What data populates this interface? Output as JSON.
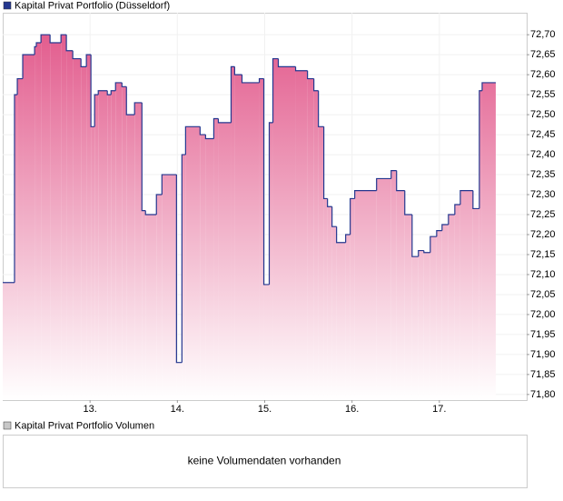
{
  "chart_data": [
    {
      "type": "line",
      "series": [
        {
          "name": "Kapital Privat Portfolio (Düsseldorf)",
          "color": "#24378f",
          "fill": "#e25a8c",
          "values": [
            72.08,
            72.55,
            72.59,
            72.65,
            72.67,
            72.68,
            72.7,
            72.68,
            72.7,
            72.66,
            72.64,
            72.62,
            72.65,
            72.47,
            72.55,
            72.56,
            72.55,
            72.56,
            72.58,
            72.57,
            72.5,
            72.53,
            72.26,
            72.25,
            72.3,
            72.35,
            71.88,
            72.4,
            72.47,
            72.45,
            72.44,
            72.49,
            72.48,
            72.62,
            72.6,
            72.58,
            72.59,
            72.075,
            72.48,
            72.64,
            72.62,
            72.61,
            72.59,
            72.56,
            72.47,
            72.29,
            72.27,
            72.22,
            72.18,
            72.2,
            72.29,
            72.31,
            72.34,
            72.36,
            72.31,
            72.25,
            72.145,
            72.16,
            72.155,
            72.195,
            72.21,
            72.225,
            72.25,
            72.275,
            72.31,
            72.265,
            72.56,
            72.58,
            72.58
          ]
        }
      ],
      "x": [
        12.0,
        12.135,
        12.167,
        12.229,
        12.365,
        12.385,
        12.438,
        12.542,
        12.667,
        12.729,
        12.802,
        12.896,
        12.958,
        13.01,
        13.052,
        13.094,
        13.198,
        13.24,
        13.292,
        13.365,
        13.417,
        13.51,
        13.594,
        13.635,
        13.76,
        13.823,
        13.99,
        14.052,
        14.094,
        14.26,
        14.323,
        14.417,
        14.469,
        14.615,
        14.656,
        14.74,
        14.938,
        14.99,
        15.052,
        15.094,
        15.156,
        15.354,
        15.49,
        15.563,
        15.615,
        15.677,
        15.719,
        15.771,
        15.823,
        15.927,
        15.979,
        16.031,
        16.281,
        16.448,
        16.51,
        16.604,
        16.688,
        16.76,
        16.823,
        16.896,
        16.969,
        17.031,
        17.104,
        17.177,
        17.24,
        17.385,
        17.458,
        17.49,
        17.646
      ],
      "xlim": [
        12,
        18
      ],
      "xticks": [
        {
          "value": 13,
          "label": "13."
        },
        {
          "value": 14,
          "label": "14."
        },
        {
          "value": 15,
          "label": "15."
        },
        {
          "value": 16,
          "label": "16."
        },
        {
          "value": 17,
          "label": "17."
        }
      ],
      "ylim": [
        71.786,
        72.755
      ],
      "yticks": [
        {
          "value": 71.8,
          "label": "71,80"
        },
        {
          "value": 71.85,
          "label": "71,85"
        },
        {
          "value": 71.9,
          "label": "71,90"
        },
        {
          "value": 71.95,
          "label": "71,95"
        },
        {
          "value": 72.0,
          "label": "72,00"
        },
        {
          "value": 72.05,
          "label": "72,05"
        },
        {
          "value": 72.1,
          "label": "72,10"
        },
        {
          "value": 72.15,
          "label": "72,15"
        },
        {
          "value": 72.2,
          "label": "72,20"
        },
        {
          "value": 72.25,
          "label": "72,25"
        },
        {
          "value": 72.3,
          "label": "72,30"
        },
        {
          "value": 72.35,
          "label": "72,35"
        },
        {
          "value": 72.4,
          "label": "72,40"
        },
        {
          "value": 72.45,
          "label": "72,45"
        },
        {
          "value": 72.5,
          "label": "72,50"
        },
        {
          "value": 72.55,
          "label": "72,55"
        },
        {
          "value": 72.6,
          "label": "72,60"
        },
        {
          "value": 72.65,
          "label": "72,65"
        },
        {
          "value": 72.7,
          "label": "72,70"
        }
      ],
      "grid": true
    },
    {
      "type": "bar",
      "series": [
        {
          "name": "Kapital Privat Portfolio Volumen",
          "color": "#c8c8c8"
        }
      ],
      "annotation": "keine Volumendaten vorhanden"
    }
  ]
}
